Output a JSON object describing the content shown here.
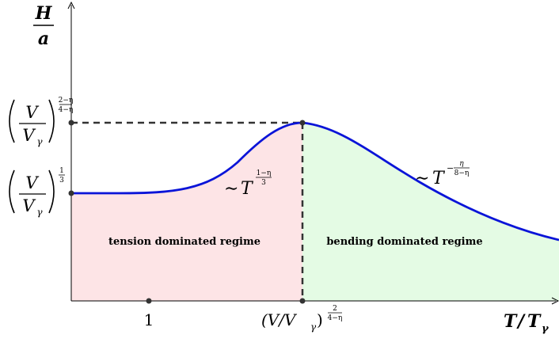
{
  "y_axis": {
    "label_num": "H",
    "label_den": "a"
  },
  "x_axis": {
    "label_T": "T",
    "label_slash": "/",
    "label_Tg": "T",
    "label_sub": "γ",
    "tick_one": "1",
    "tick_peak_base": "(V/V",
    "tick_peak_sub": "γ",
    "tick_peak_close": ")",
    "tick_peak_exp_num": "2",
    "tick_peak_exp_den": "4−η"
  },
  "y_ticks": {
    "upper": {
      "num": "V",
      "den": "V",
      "den_sub": "γ",
      "exp_num": "2−η",
      "exp_den": "4−η"
    },
    "lower": {
      "num": "V",
      "den": "V",
      "den_sub": "γ",
      "exp_num": "1",
      "exp_den": "3"
    }
  },
  "regions": {
    "left": "tension dominated regime",
    "right": "bending dominated regime"
  },
  "scalings": {
    "left": {
      "tilde": "∼",
      "base": "T",
      "exp_num": "1−η",
      "exp_den": "3"
    },
    "right": {
      "tilde": "∼",
      "base": "T",
      "exp_minus": "−",
      "exp_num": "η",
      "exp_den": "8−η"
    }
  },
  "colors": {
    "curve": "#0a14d8",
    "left_fill": "#fde4e6",
    "right_fill": "#e4fbe4",
    "axis": "#000000",
    "dash": "#333333"
  }
}
